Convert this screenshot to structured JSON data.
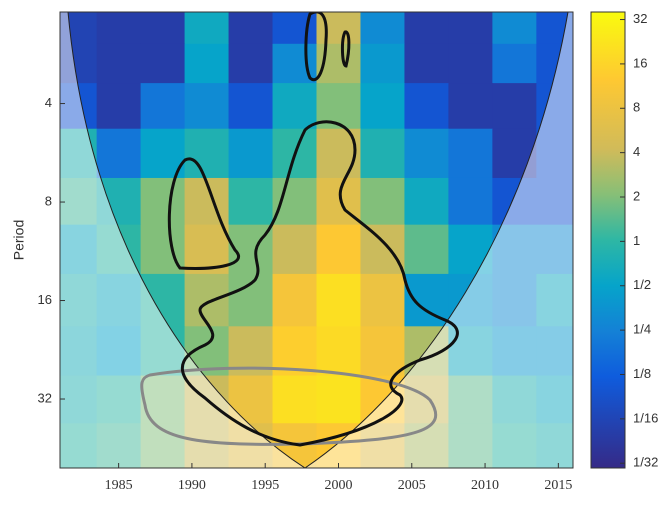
{
  "chart_data": {
    "type": "heatmap",
    "y_label": "Period",
    "yscale": "log",
    "x": [
      1982,
      1985,
      1988,
      1991,
      1994,
      1997,
      2000,
      2003,
      2006,
      2009,
      2012,
      2015
    ],
    "y": [
      2.3,
      3,
      4,
      5.7,
      8,
      11,
      16,
      23,
      32,
      45
    ],
    "values": [
      [
        0.06,
        0.05,
        0.05,
        0.6,
        0.05,
        0.1,
        4,
        0.3,
        0.05,
        0.05,
        0.3,
        0.1
      ],
      [
        0.06,
        0.05,
        0.05,
        0.5,
        0.05,
        0.3,
        3,
        0.4,
        0.05,
        0.05,
        0.2,
        0.1
      ],
      [
        0.1,
        0.05,
        0.2,
        0.3,
        0.1,
        0.6,
        2,
        0.5,
        0.1,
        0.05,
        0.05,
        0.1
      ],
      [
        0.8,
        0.2,
        0.5,
        0.8,
        0.4,
        1,
        4,
        0.8,
        0.3,
        0.2,
        0.05,
        0.1
      ],
      [
        1.2,
        0.8,
        2,
        4,
        1,
        2,
        6,
        2,
        0.6,
        0.2,
        0.1,
        0.1
      ],
      [
        0.6,
        1,
        2,
        5,
        2,
        4,
        12,
        4,
        1.5,
        0.5,
        0.3,
        0.3
      ],
      [
        0.8,
        0.6,
        1,
        3,
        2,
        10,
        20,
        8,
        0.4,
        0.4,
        0.3,
        0.6
      ],
      [
        0.7,
        0.5,
        1,
        2,
        4,
        14,
        18,
        10,
        3,
        0.6,
        0.4,
        0.4
      ],
      [
        0.8,
        1,
        2,
        4,
        8,
        20,
        22,
        12,
        4,
        1.5,
        0.8,
        0.6
      ],
      [
        1,
        1.2,
        2,
        4,
        6,
        10,
        12,
        6,
        3,
        1.5,
        1,
        0.8
      ]
    ],
    "xlim": [
      1981,
      2016
    ],
    "xticks": [
      1985,
      1990,
      1995,
      2000,
      2005,
      2010,
      2015
    ],
    "ylim": [
      2.1,
      52
    ],
    "yticks": [
      4,
      8,
      16,
      32
    ],
    "clim": [
      0.029,
      36
    ],
    "cticks": [
      {
        "value": 32,
        "label": "32"
      },
      {
        "value": 16,
        "label": "16"
      },
      {
        "value": 8,
        "label": "8"
      },
      {
        "value": 4,
        "label": "4"
      },
      {
        "value": 2,
        "label": "2"
      },
      {
        "value": 1,
        "label": "1"
      },
      {
        "value": 0.5,
        "label": "1/2"
      },
      {
        "value": 0.25,
        "label": "1/4"
      },
      {
        "value": 0.125,
        "label": "1/8"
      },
      {
        "value": 0.0625,
        "label": "1/16"
      },
      {
        "value": 0.03125,
        "label": "1/32"
      }
    ]
  }
}
